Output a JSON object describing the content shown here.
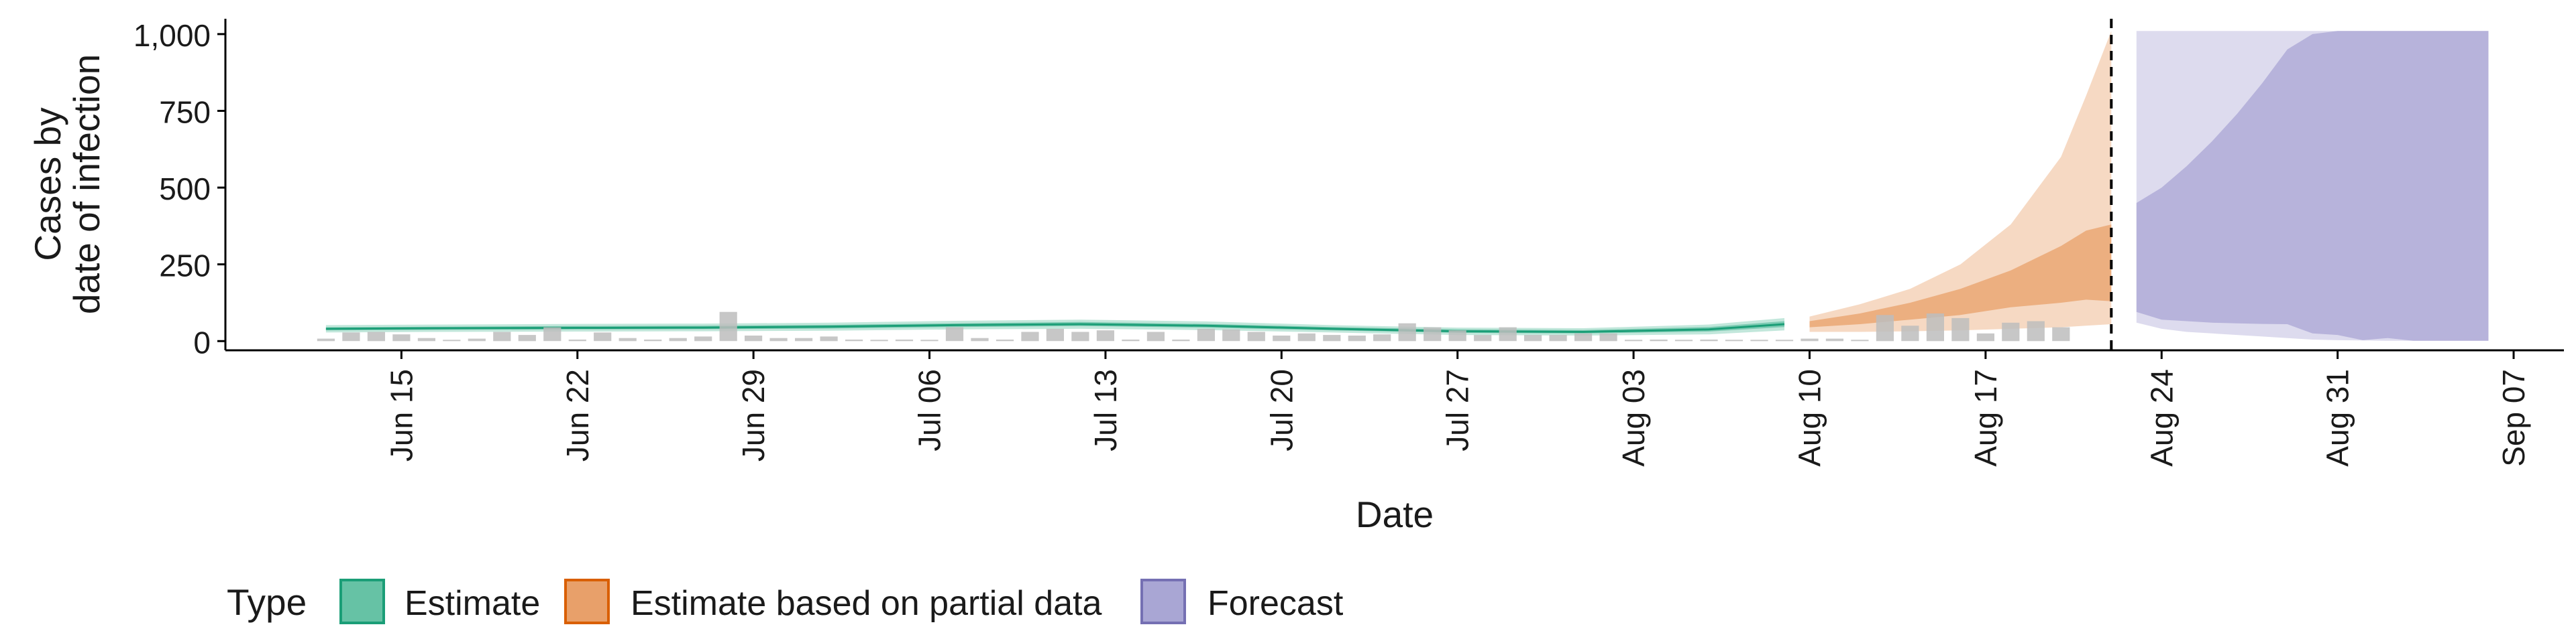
{
  "chart_data": {
    "type": "area",
    "title": "",
    "xlabel": "Date",
    "ylabel_lines": [
      "Cases by",
      "date of infection"
    ],
    "xlim": [
      "2020-06-08",
      "2020-09-09"
    ],
    "ylim": [
      -30,
      1050
    ],
    "y_ticks": [
      0,
      250,
      500,
      750,
      1000
    ],
    "y_tick_labels": [
      "0",
      "250",
      "500",
      "750",
      "1,000"
    ],
    "x_ticks": [
      "2020-06-15",
      "2020-06-22",
      "2020-06-29",
      "2020-07-06",
      "2020-07-13",
      "2020-07-20",
      "2020-07-27",
      "2020-08-03",
      "2020-08-10",
      "2020-08-17",
      "2020-08-24",
      "2020-08-31",
      "2020-09-07"
    ],
    "x_tick_labels": [
      "Jun 15",
      "Jun 22",
      "Jun 29",
      "Jul 06",
      "Jul 13",
      "Jul 20",
      "Jul 27",
      "Aug 03",
      "Aug 10",
      "Aug 17",
      "Aug 24",
      "Aug 31",
      "Sep 07"
    ],
    "vline_date": "2020-08-22",
    "legend": {
      "title": "Type",
      "position": "bottom",
      "entries": [
        {
          "label": "Estimate",
          "fill": "#66c2a5",
          "stroke": "#1b9e77"
        },
        {
          "label": "Estimate based on partial data",
          "fill": "#e8a06a",
          "stroke": "#d95f02"
        },
        {
          "label": "Forecast",
          "fill": "#a9a6d4",
          "stroke": "#7570b3"
        }
      ]
    },
    "grid": false,
    "bars": {
      "start": "2020-06-12",
      "color": "#bdbdbd",
      "values": [
        8,
        28,
        30,
        22,
        10,
        3,
        8,
        30,
        20,
        45,
        5,
        28,
        10,
        5,
        10,
        15,
        95,
        18,
        10,
        10,
        15,
        5,
        0,
        5,
        3,
        45,
        10,
        5,
        30,
        40,
        30,
        35,
        5,
        30,
        5,
        40,
        38,
        30,
        18,
        25,
        20,
        18,
        22,
        58,
        45,
        35,
        20,
        45,
        20,
        20,
        25,
        25,
        3,
        5,
        0,
        5,
        0,
        0,
        0,
        8,
        8,
        0,
        85,
        50,
        90,
        75,
        25,
        60,
        65,
        45
      ]
    },
    "series": [
      {
        "name": "Estimate",
        "fill": "#66c2a5",
        "line": "#1b9e77",
        "x": [
          "2020-06-12",
          "2020-06-17",
          "2020-06-22",
          "2020-06-27",
          "2020-07-02",
          "2020-07-07",
          "2020-07-12",
          "2020-07-17",
          "2020-07-22",
          "2020-07-27",
          "2020-08-01",
          "2020-08-06",
          "2020-08-09"
        ],
        "median": [
          40,
          42,
          43,
          44,
          47,
          52,
          55,
          50,
          40,
          32,
          30,
          38,
          55
        ],
        "lower_outer": [
          28,
          30,
          31,
          32,
          34,
          38,
          40,
          36,
          28,
          20,
          18,
          22,
          35
        ],
        "upper_outer": [
          52,
          54,
          56,
          57,
          60,
          66,
          70,
          64,
          52,
          44,
          42,
          54,
          75
        ],
        "lower_inner": [
          35,
          37,
          38,
          39,
          41,
          46,
          49,
          44,
          35,
          27,
          25,
          31,
          46
        ],
        "upper_inner": [
          45,
          47,
          49,
          50,
          53,
          58,
          62,
          56,
          46,
          38,
          36,
          46,
          65
        ]
      },
      {
        "name": "Estimate based on partial data",
        "fill": "#e8a06a",
        "x": [
          "2020-08-10",
          "2020-08-12",
          "2020-08-14",
          "2020-08-16",
          "2020-08-18",
          "2020-08-20",
          "2020-08-21",
          "2020-08-22"
        ],
        "lower_outer": [
          30,
          30,
          32,
          35,
          40,
          45,
          50,
          55
        ],
        "upper_outer": [
          80,
          120,
          170,
          250,
          380,
          600,
          800,
          1010
        ],
        "lower_inner": [
          45,
          55,
          70,
          85,
          110,
          125,
          135,
          130
        ],
        "upper_inner": [
          65,
          90,
          125,
          170,
          230,
          310,
          360,
          380
        ]
      },
      {
        "name": "Forecast",
        "fill": "#a9a6d4",
        "x": [
          "2020-08-23",
          "2020-08-24",
          "2020-08-25",
          "2020-08-26",
          "2020-08-27",
          "2020-08-28",
          "2020-08-29",
          "2020-08-30",
          "2020-08-31",
          "2020-09-01",
          "2020-09-02",
          "2020-09-03",
          "2020-09-04",
          "2020-09-05",
          "2020-09-06"
        ],
        "lower_outer": [
          60,
          40,
          30,
          25,
          20,
          15,
          10,
          5,
          3,
          2,
          1,
          1,
          1,
          1,
          1
        ],
        "upper_outer": [
          1010,
          1010,
          1010,
          1010,
          1010,
          1010,
          1010,
          1010,
          1010,
          1010,
          1010,
          1010,
          1010,
          1010,
          1010
        ],
        "lower_inner": [
          95,
          70,
          65,
          60,
          58,
          56,
          55,
          25,
          20,
          3,
          10,
          1,
          1,
          1,
          1
        ],
        "upper_inner": [
          450,
          500,
          570,
          650,
          740,
          840,
          950,
          1000,
          1010,
          1010,
          1010,
          1010,
          1010,
          1010,
          1010
        ]
      }
    ]
  }
}
